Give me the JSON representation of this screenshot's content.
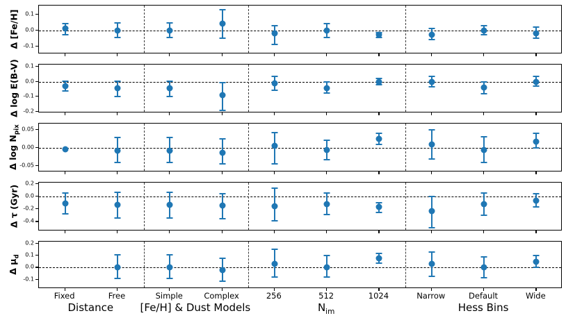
{
  "figure": {
    "accent_color": "#1f77b4",
    "zero_line_color": "#000000"
  },
  "chart_data": {
    "type": "scatter",
    "description": "Five stacked panels of parameter offsets with error bars across four test groups; dashed horizontal line marks zero in each panel; dashed vertical lines separate groups.",
    "categories": [
      "Fixed",
      "Free",
      "Simple",
      "Complex",
      "256",
      "512",
      "1024",
      "Narrow",
      "Default",
      "Wide"
    ],
    "group_separators_after": [
      2,
      4,
      7
    ],
    "groups": [
      {
        "label": "Distance",
        "span": 2
      },
      {
        "label": "[Fe/H] & Dust Models",
        "span": 2
      },
      {
        "label": "N_{im}",
        "span": 3
      },
      {
        "label": "Hess Bins",
        "span": 3
      }
    ],
    "panels": [
      {
        "ylabel": "Δ [Fe/H]",
        "ylim": [
          -0.15,
          0.155
        ],
        "yticks": [
          0.1,
          0.0,
          -0.1
        ],
        "ytick_labels": [
          "0.1",
          "0.0",
          "-0.1"
        ],
        "points": [
          {
            "v": 0.01,
            "lo": -0.03,
            "hi": 0.04
          },
          {
            "v": 0.0,
            "lo": -0.045,
            "hi": 0.045
          },
          {
            "v": 0.0,
            "lo": -0.045,
            "hi": 0.045
          },
          {
            "v": 0.04,
            "lo": -0.05,
            "hi": 0.13
          },
          {
            "v": -0.02,
            "lo": -0.09,
            "hi": 0.03
          },
          {
            "v": 0.0,
            "lo": -0.045,
            "hi": 0.04
          },
          {
            "v": -0.03,
            "lo": -0.045,
            "hi": -0.015
          },
          {
            "v": -0.03,
            "lo": -0.06,
            "hi": 0.01
          },
          {
            "v": 0.0,
            "lo": -0.03,
            "hi": 0.03
          },
          {
            "v": -0.02,
            "lo": -0.05,
            "hi": 0.02
          }
        ]
      },
      {
        "ylabel": "Δ log E(B-V)",
        "ylim": [
          -0.21,
          0.115
        ],
        "yticks": [
          0.1,
          0.0,
          -0.1,
          -0.2
        ],
        "ytick_labels": [
          "0.1",
          "0.0",
          "-0.1",
          "-0.2"
        ],
        "points": [
          {
            "v": -0.03,
            "lo": -0.06,
            "hi": 0.005
          },
          {
            "v": -0.045,
            "lo": -0.1,
            "hi": 0.005
          },
          {
            "v": -0.045,
            "lo": -0.1,
            "hi": 0.005
          },
          {
            "v": -0.09,
            "lo": -0.19,
            "hi": -0.005
          },
          {
            "v": -0.01,
            "lo": -0.055,
            "hi": 0.035
          },
          {
            "v": -0.045,
            "lo": -0.075,
            "hi": 0.0
          },
          {
            "v": 0.0,
            "lo": -0.02,
            "hi": 0.02
          },
          {
            "v": 0.0,
            "lo": -0.035,
            "hi": 0.035
          },
          {
            "v": -0.04,
            "lo": -0.08,
            "hi": 0.0
          },
          {
            "v": 0.0,
            "lo": -0.03,
            "hi": 0.035
          }
        ]
      },
      {
        "ylabel": "Δ log N_{pix}",
        "ylim": [
          -0.0675,
          0.0675
        ],
        "yticks": [
          0.05,
          0.0,
          -0.05
        ],
        "ytick_labels": [
          "0.05",
          "0.00",
          "-0.05"
        ],
        "points": [
          {
            "v": -0.003,
            "lo": null,
            "hi": null
          },
          {
            "v": -0.007,
            "lo": -0.04,
            "hi": 0.028
          },
          {
            "v": -0.008,
            "lo": -0.04,
            "hi": 0.028
          },
          {
            "v": -0.013,
            "lo": -0.045,
            "hi": 0.025
          },
          {
            "v": 0.005,
            "lo": -0.045,
            "hi": 0.042
          },
          {
            "v": -0.005,
            "lo": -0.033,
            "hi": 0.022
          },
          {
            "v": 0.025,
            "lo": 0.01,
            "hi": 0.04
          },
          {
            "v": 0.01,
            "lo": -0.03,
            "hi": 0.05
          },
          {
            "v": -0.005,
            "lo": -0.04,
            "hi": 0.03
          },
          {
            "v": 0.018,
            "lo": 0.0,
            "hi": 0.04
          }
        ]
      },
      {
        "ylabel": "Δ τ (Gyr)",
        "ylim": [
          -0.55,
          0.22
        ],
        "yticks": [
          0.2,
          0.0,
          -0.2,
          -0.4
        ],
        "ytick_labels": [
          "0.2",
          "0.0",
          "-0.2",
          "-0.4"
        ],
        "points": [
          {
            "v": -0.11,
            "lo": -0.27,
            "hi": 0.05
          },
          {
            "v": -0.13,
            "lo": -0.34,
            "hi": 0.07
          },
          {
            "v": -0.13,
            "lo": -0.34,
            "hi": 0.07
          },
          {
            "v": -0.14,
            "lo": -0.35,
            "hi": 0.04
          },
          {
            "v": -0.15,
            "lo": -0.38,
            "hi": 0.13
          },
          {
            "v": -0.12,
            "lo": -0.29,
            "hi": 0.06
          },
          {
            "v": -0.17,
            "lo": -0.25,
            "hi": -0.1
          },
          {
            "v": -0.23,
            "lo": -0.49,
            "hi": 0.0
          },
          {
            "v": -0.12,
            "lo": -0.3,
            "hi": 0.05
          },
          {
            "v": -0.07,
            "lo": -0.17,
            "hi": 0.04
          }
        ]
      },
      {
        "ylabel": "Δ μ_{d}",
        "ylim": [
          -0.175,
          0.215
        ],
        "yticks": [
          0.2,
          0.1,
          0.0,
          -0.1
        ],
        "ytick_labels": [
          "0.2",
          "0.1",
          "0.0",
          "-0.1"
        ],
        "points": [
          null,
          {
            "v": 0.0,
            "lo": -0.09,
            "hi": 0.105
          },
          {
            "v": 0.0,
            "lo": -0.09,
            "hi": 0.105
          },
          {
            "v": -0.02,
            "lo": -0.11,
            "hi": 0.08
          },
          {
            "v": 0.03,
            "lo": -0.08,
            "hi": 0.15
          },
          {
            "v": 0.0,
            "lo": -0.08,
            "hi": 0.1
          },
          {
            "v": 0.08,
            "lo": 0.04,
            "hi": 0.12
          },
          {
            "v": 0.03,
            "lo": -0.07,
            "hi": 0.13
          },
          {
            "v": 0.0,
            "lo": -0.085,
            "hi": 0.09
          },
          {
            "v": 0.05,
            "lo": 0.0,
            "hi": 0.1
          }
        ]
      }
    ]
  }
}
